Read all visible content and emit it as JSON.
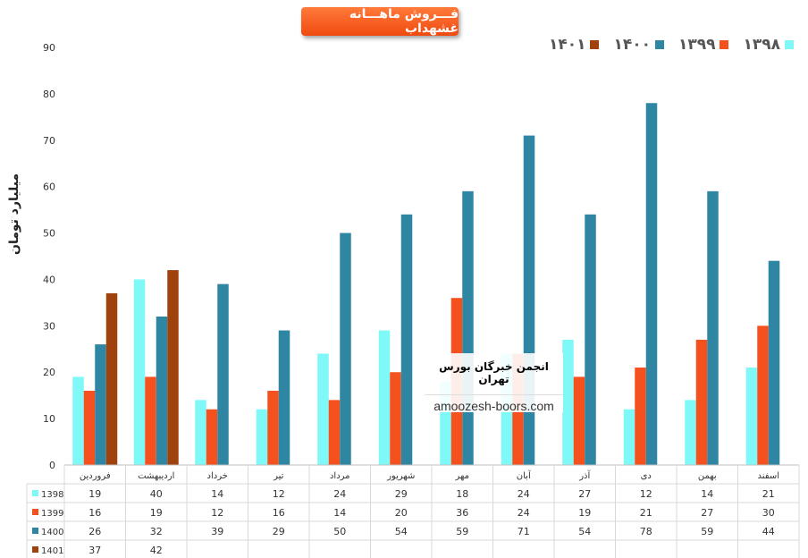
{
  "chart_data": {
    "type": "bar",
    "title": "فـــروش ماهـــانه غشهداب",
    "ylabel": "میلیارد تومان",
    "xlabel": "",
    "ylim": [
      0,
      90
    ],
    "yticks": [
      0,
      10,
      20,
      30,
      40,
      50,
      60,
      70,
      80,
      90
    ],
    "grid": false,
    "legend_position": "top-right",
    "categories": [
      "فروردین",
      "اردیبهشت",
      "خرداد",
      "تیر",
      "مرداد",
      "شهریور",
      "مهر",
      "آبان",
      "آذر",
      "دی",
      "بهمن",
      "اسفند"
    ],
    "series": [
      {
        "name": "1398",
        "legend_label": "۱۳۹۸",
        "color": "#7ff8f8",
        "values": [
          19,
          40,
          14,
          12,
          24,
          29,
          18,
          24,
          27,
          12,
          14,
          21
        ]
      },
      {
        "name": "1399",
        "legend_label": "۱۳۹۹",
        "color": "#f4511e",
        "values": [
          16,
          19,
          12,
          16,
          14,
          20,
          36,
          24,
          19,
          21,
          27,
          30
        ]
      },
      {
        "name": "1400",
        "legend_label": "۱۴۰۰",
        "color": "#2e86a3",
        "values": [
          26,
          32,
          39,
          29,
          50,
          54,
          59,
          71,
          54,
          78,
          59,
          44
        ]
      },
      {
        "name": "1401",
        "legend_label": "۱۴۰۱",
        "color": "#a0420e",
        "values": [
          37,
          42,
          null,
          null,
          null,
          null,
          null,
          null,
          null,
          null,
          null,
          null
        ]
      }
    ]
  },
  "watermark": {
    "line1": "انجمن خبرگان بورس تهران",
    "line2": "amoozesh-boors.com"
  }
}
